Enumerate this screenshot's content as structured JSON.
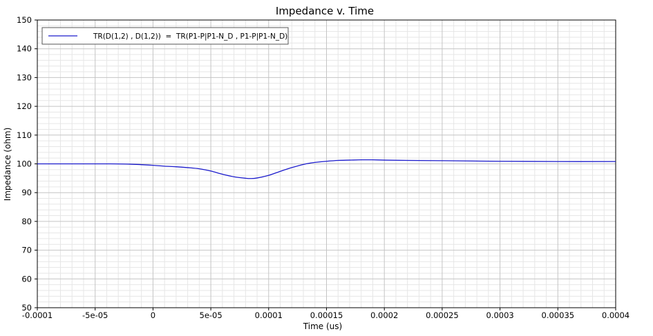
{
  "chart_data": {
    "type": "line",
    "title": "Impedance v. Time",
    "xlabel": "Time (us)",
    "ylabel": "Impedance (ohm)",
    "xlim": [
      -0.0001,
      0.0004
    ],
    "ylim": [
      50,
      150
    ],
    "x_ticks": [
      -0.0001,
      -5e-05,
      0,
      5e-05,
      0.0001,
      0.00015,
      0.0002,
      0.00025,
      0.0003,
      0.00035,
      0.0004
    ],
    "x_tick_labels": [
      "-0.0001",
      "-5e-05",
      "0",
      "5e-05",
      "0.0001",
      "0.00015",
      "0.0002",
      "0.00025",
      "0.0003",
      "0.00035",
      "0.0004"
    ],
    "y_ticks": [
      50,
      60,
      70,
      80,
      90,
      100,
      110,
      120,
      130,
      140,
      150
    ],
    "y_tick_labels": [
      "50",
      "60",
      "70",
      "80",
      "90",
      "100",
      "110",
      "120",
      "130",
      "140",
      "150"
    ],
    "grid": true,
    "legend_position": "top-left",
    "series": [
      {
        "name": "TR(D(1,2) , D(1,2))  =  TR(P1-P|P1-N_D , P1-P|P1-N_D)",
        "color": "#1a1acc",
        "x": [
          -0.0001,
          -8e-05,
          -6e-05,
          -4e-05,
          -2e-05,
          0,
          1e-05,
          2e-05,
          3e-05,
          4e-05,
          5e-05,
          6e-05,
          7e-05,
          8e-05,
          8.5e-05,
          9e-05,
          0.0001,
          0.00011,
          0.00012,
          0.00013,
          0.00014,
          0.00015,
          0.00016,
          0.00017,
          0.00018,
          0.00019,
          0.0002,
          0.00022,
          0.00025,
          0.0003,
          0.00035,
          0.0004
        ],
        "values": [
          100.0,
          100.0,
          100.0,
          100.0,
          99.9,
          99.5,
          99.2,
          99.0,
          98.7,
          98.3,
          97.5,
          96.4,
          95.5,
          95.0,
          94.9,
          95.1,
          96.0,
          97.4,
          98.7,
          99.8,
          100.5,
          100.9,
          101.2,
          101.3,
          101.4,
          101.4,
          101.3,
          101.2,
          101.1,
          100.9,
          100.8,
          100.8
        ]
      }
    ]
  }
}
